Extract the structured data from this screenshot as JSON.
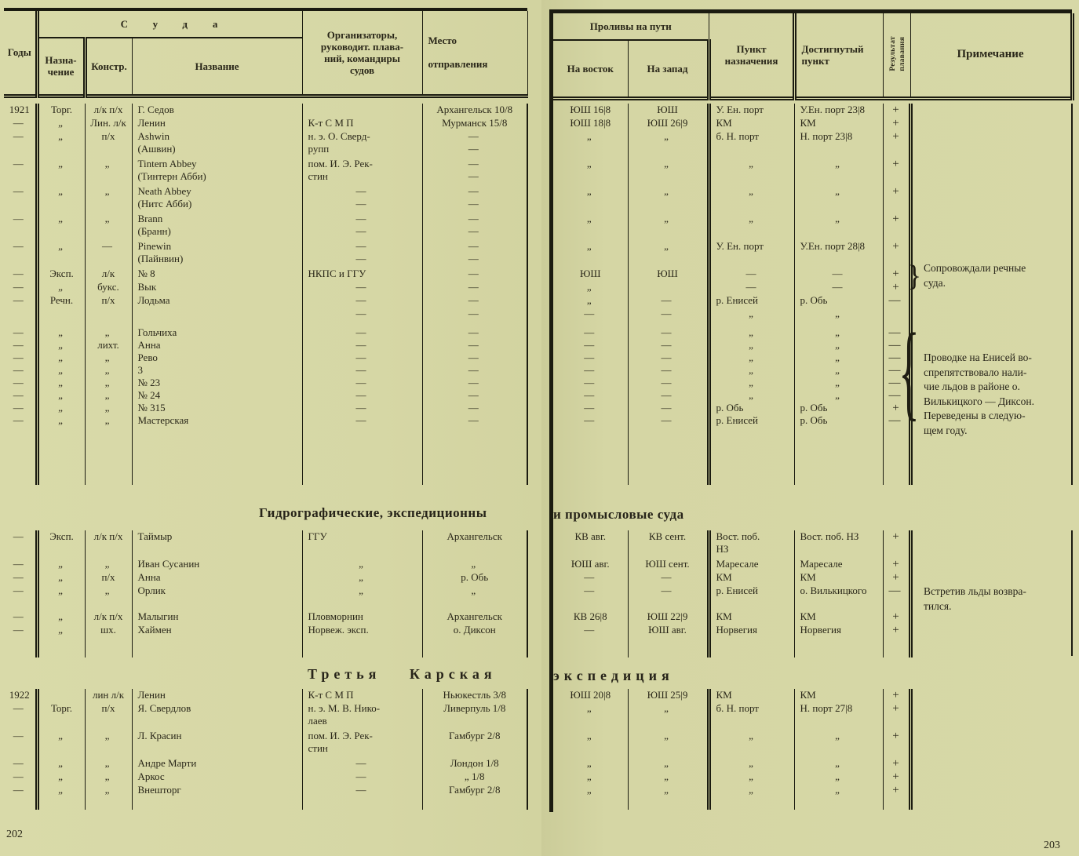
{
  "titles": {
    "section2_left": "Гидрографические, экспедиционны",
    "section2_right": "и промысловые суда",
    "section3_left": "Третья Карская",
    "section3_right": "экспедиция"
  },
  "page_left": {
    "page_number": "202",
    "header": {
      "years": "Годы",
      "suda": "Суда",
      "naznachenie": [
        "Назна-",
        "чение"
      ],
      "konstr": "Констр.",
      "nazvanie": "Название",
      "organizers": [
        "Организаторы,",
        "руководит. плава-",
        "ний, командиры",
        "судов"
      ],
      "mesto": [
        "Место",
        "",
        "отправления"
      ]
    },
    "section1_rows": [
      [
        [
          "1921"
        ],
        [
          "Торг."
        ],
        [
          "л/к п/х"
        ],
        [
          "Г. Седов"
        ],
        [],
        [
          "Архангельск 10/8"
        ]
      ],
      [
        [
          "—"
        ],
        [
          "„"
        ],
        [
          "Лин. л/к"
        ],
        [
          "Ленин"
        ],
        [
          "К-т С М П"
        ],
        [
          "Мурманск 15/8"
        ]
      ],
      [
        [
          "—"
        ],
        [
          "„"
        ],
        [
          "п/х"
        ],
        [
          "Ashwin",
          "(Ашвин)"
        ],
        [
          "н. э. О. Сверд-",
          "рупп"
        ],
        [
          "—",
          "—"
        ]
      ],
      [
        [
          "—"
        ],
        [
          "„"
        ],
        [
          "„"
        ],
        [
          "Tintern Abbey",
          "(Тинтерн Абби)"
        ],
        [
          "пом. И. Э. Рек-",
          "стин"
        ],
        [
          "—",
          "—"
        ]
      ],
      [
        [
          "—"
        ],
        [
          "„"
        ],
        [
          "„"
        ],
        [
          "Neath Abbey",
          "(Нитс Абби)"
        ],
        [
          "—",
          "—"
        ],
        [
          "—",
          "—"
        ]
      ],
      [
        [
          "—"
        ],
        [
          "„"
        ],
        [
          "„"
        ],
        [
          "Brann",
          "(Бранн)"
        ],
        [
          "—",
          "—"
        ],
        [
          "—",
          "—"
        ]
      ],
      [
        [
          "—"
        ],
        [
          "„"
        ],
        [
          "—"
        ],
        [
          "Pinewin",
          "(Пайнвин)"
        ],
        [
          "—",
          "—"
        ],
        [
          "—",
          "—"
        ]
      ],
      [
        [
          "—"
        ],
        [
          "Эксп."
        ],
        [
          "л/к"
        ],
        [
          "№ 8"
        ],
        [
          "НКПС и ГГУ"
        ],
        [
          "—"
        ]
      ],
      [
        [
          "—"
        ],
        [
          "„"
        ],
        [
          "букс."
        ],
        [
          "Вык"
        ],
        [
          "—"
        ],
        [
          "—"
        ]
      ],
      [
        [
          "—"
        ],
        [
          "Речн."
        ],
        [
          "п/х"
        ],
        [
          "Лодьма"
        ],
        [
          "—"
        ],
        [
          "—"
        ]
      ],
      [
        [],
        [],
        [],
        [],
        [
          "—"
        ],
        [
          "—"
        ]
      ],
      [
        [
          "—"
        ],
        [
          "„"
        ],
        [
          "„"
        ],
        [
          "Гольчиха"
        ],
        [
          "—"
        ],
        [
          "—"
        ]
      ],
      [
        [
          "—"
        ],
        [
          "„"
        ],
        [
          "лихт."
        ],
        [
          "Анна"
        ],
        [
          "—"
        ],
        [
          "—"
        ]
      ],
      [
        [
          "—"
        ],
        [
          "„"
        ],
        [
          "„"
        ],
        [
          "Рево"
        ],
        [
          "—"
        ],
        [
          "—"
        ]
      ],
      [
        [
          "—"
        ],
        [
          "„"
        ],
        [
          "„"
        ],
        [
          "3"
        ],
        [
          "—"
        ],
        [
          "—"
        ]
      ],
      [
        [
          "—"
        ],
        [
          "„"
        ],
        [
          "„"
        ],
        [
          "№ 23"
        ],
        [
          "—"
        ],
        [
          "—"
        ]
      ],
      [
        [
          "—"
        ],
        [
          "„"
        ],
        [
          "„"
        ],
        [
          "№ 24"
        ],
        [
          "—"
        ],
        [
          "—"
        ]
      ],
      [
        [
          "—"
        ],
        [
          "„"
        ],
        [
          "„"
        ],
        [
          "№ 315"
        ],
        [
          "—"
        ],
        [
          "—"
        ]
      ],
      [
        [
          "—"
        ],
        [
          "„"
        ],
        [
          "„"
        ],
        [
          "Мастерская"
        ],
        [
          "—"
        ],
        [
          "—"
        ]
      ]
    ],
    "section2_rows": [
      [
        [
          "—"
        ],
        [
          "Эксп."
        ],
        [
          "л/к п/х"
        ],
        [
          "Таймыр"
        ],
        [
          "ГГУ"
        ],
        [
          "Архангельск"
        ]
      ],
      [
        [
          "—"
        ],
        [
          "„"
        ],
        [
          "„"
        ],
        [
          "Иван Сусанин"
        ],
        [
          "„"
        ],
        [
          "„"
        ]
      ],
      [
        [
          "—"
        ],
        [
          "„"
        ],
        [
          "п/х"
        ],
        [
          "Анна"
        ],
        [
          "„"
        ],
        [
          "р. Обь"
        ]
      ],
      [
        [
          "—"
        ],
        [
          "„"
        ],
        [
          "„"
        ],
        [
          "Орлик"
        ],
        [
          "„"
        ],
        [
          "„"
        ]
      ],
      [
        [],
        [],
        [],
        [],
        [],
        []
      ],
      [
        [
          "—"
        ],
        [
          "„"
        ],
        [
          "л/к п/х"
        ],
        [
          "Малыгин"
        ],
        [
          "Пловморнин"
        ],
        [
          "Архангельск"
        ]
      ],
      [
        [
          "—"
        ],
        [
          "„"
        ],
        [
          "шх."
        ],
        [
          "Хаймен"
        ],
        [
          "Норвеж. эксп."
        ],
        [
          "о. Диксон"
        ]
      ]
    ],
    "section3_rows": [
      [
        [
          "1922"
        ],
        [],
        [
          "лин л/к"
        ],
        [
          "Ленин"
        ],
        [
          "К-т С М П"
        ],
        [
          "Ньюкестль 3/8"
        ]
      ],
      [
        [
          "—"
        ],
        [
          "Торг."
        ],
        [
          "п/х"
        ],
        [
          "Я. Свердлов"
        ],
        [
          "н. э. М. В. Нико-",
          "лаев"
        ],
        [
          "Ливерпуль 1/8"
        ]
      ],
      [
        [
          "—"
        ],
        [
          "„"
        ],
        [
          "„"
        ],
        [
          "Л. Красин"
        ],
        [
          "пом. И. Э. Рек-",
          "стин"
        ],
        [
          "Гамбург 2/8"
        ]
      ],
      [
        [
          "—"
        ],
        [
          "„"
        ],
        [
          "„"
        ],
        [
          "Андре Марти"
        ],
        [
          "—"
        ],
        [
          "Лондон 1/8"
        ]
      ],
      [
        [
          "—"
        ],
        [
          "„"
        ],
        [
          "„"
        ],
        [
          "Аркос"
        ],
        [
          "—"
        ],
        [
          "„ 1/8"
        ]
      ],
      [
        [
          "—"
        ],
        [
          "„"
        ],
        [
          "„"
        ],
        [
          "Внешторг"
        ],
        [
          "—"
        ],
        [
          "Гамбург 2/8"
        ]
      ]
    ]
  },
  "page_right": {
    "page_number": "203",
    "header": {
      "prolivy": "Проливы на пути",
      "na_vostok": "На восток",
      "na_zapad": "На запад",
      "punkt": [
        "Пункт",
        "назначения"
      ],
      "dostignutyj": [
        "Достигнутый",
        "пункт"
      ],
      "rezultat": [
        "Результат",
        "плавания"
      ],
      "primechanie": "Примечание"
    },
    "section1_rows": [
      [
        [
          "ЮШ 16|8"
        ],
        [
          "ЮШ"
        ],
        [
          "У. Ен. порт"
        ],
        [
          "У.Ен. порт 23|8"
        ],
        [
          "+"
        ]
      ],
      [
        [
          "ЮШ 18|8"
        ],
        [
          "ЮШ 26|9"
        ],
        [
          "КМ"
        ],
        [
          "КМ"
        ],
        [
          "+"
        ]
      ],
      [
        [
          "„"
        ],
        [
          "„"
        ],
        [
          "б. Н. порт"
        ],
        [
          "Н. порт 23|8"
        ],
        [
          "+"
        ]
      ],
      [
        [
          "„"
        ],
        [
          "„"
        ],
        [
          "„"
        ],
        [
          "„"
        ],
        [
          "+"
        ]
      ],
      [
        [
          "„"
        ],
        [
          "„"
        ],
        [
          "„"
        ],
        [
          "„"
        ],
        [
          "+"
        ]
      ],
      [
        [
          "„"
        ],
        [
          "„"
        ],
        [
          "„"
        ],
        [
          "„"
        ],
        [
          "+"
        ]
      ],
      [
        [
          "„"
        ],
        [
          "„"
        ],
        [
          "У. Ен. порт"
        ],
        [
          "У.Ен. порт 28|8"
        ],
        [
          "+"
        ]
      ],
      [
        [
          "ЮШ"
        ],
        [
          "ЮШ"
        ],
        [
          "—"
        ],
        [
          "—"
        ],
        [
          "+"
        ]
      ],
      [
        [
          "„"
        ],
        [],
        [
          "—"
        ],
        [
          "—"
        ],
        [
          "+"
        ]
      ],
      [
        [
          "„"
        ],
        [
          "—"
        ],
        [
          "р. Енисей"
        ],
        [
          "р. Обь"
        ],
        [
          "—"
        ]
      ],
      [
        [
          "—"
        ],
        [
          "—"
        ],
        [
          "„"
        ],
        [
          "„"
        ],
        []
      ],
      [
        [
          "—"
        ],
        [
          "—"
        ],
        [
          "„"
        ],
        [
          "„"
        ],
        [
          "—"
        ]
      ],
      [
        [
          "—"
        ],
        [
          "—"
        ],
        [
          "„"
        ],
        [
          "„"
        ],
        [
          "—"
        ]
      ],
      [
        [
          "—"
        ],
        [
          "—"
        ],
        [
          "„"
        ],
        [
          "„"
        ],
        [
          "—"
        ]
      ],
      [
        [
          "—"
        ],
        [
          "—"
        ],
        [
          "„"
        ],
        [
          "„"
        ],
        [
          "—"
        ]
      ],
      [
        [
          "—"
        ],
        [
          "—"
        ],
        [
          "„"
        ],
        [
          "„"
        ],
        [
          "—"
        ]
      ],
      [
        [
          "—"
        ],
        [
          "—"
        ],
        [
          "„"
        ],
        [
          "„"
        ],
        [
          "—"
        ]
      ],
      [
        [
          "—"
        ],
        [
          "—"
        ],
        [
          "р. Обь"
        ],
        [
          "р. Обь"
        ],
        [
          "+"
        ]
      ],
      [
        [
          "—"
        ],
        [
          "—"
        ],
        [
          "р. Енисей"
        ],
        [
          "р. Обь"
        ],
        [
          "—"
        ]
      ]
    ],
    "section2_rows": [
      [
        [
          "КВ авг."
        ],
        [
          "КВ сент."
        ],
        [
          "Вост. поб.",
          "НЗ"
        ],
        [
          "Вост. поб. НЗ"
        ],
        [
          "+"
        ]
      ],
      [
        [
          "ЮШ авг."
        ],
        [
          "ЮШ сент."
        ],
        [
          "Маресале"
        ],
        [
          "Маресале"
        ],
        [
          "+"
        ]
      ],
      [
        [
          "—"
        ],
        [
          "—"
        ],
        [
          "КМ"
        ],
        [
          "КМ"
        ],
        [
          "+"
        ]
      ],
      [
        [
          "—"
        ],
        [
          "—"
        ],
        [
          "р. Енисей"
        ],
        [
          "о. Вилькицкого"
        ],
        [
          "—"
        ]
      ],
      [
        [],
        [],
        [],
        [],
        []
      ],
      [
        [
          "КВ 26|8"
        ],
        [
          "ЮШ 22|9"
        ],
        [
          "КМ"
        ],
        [
          "КМ"
        ],
        [
          "+"
        ]
      ],
      [
        [
          "—"
        ],
        [
          "ЮШ авг."
        ],
        [
          "Норвегия"
        ],
        [
          "Норвегия"
        ],
        [
          "+"
        ]
      ]
    ],
    "section3_rows": [
      [
        [
          "ЮШ 20|8"
        ],
        [
          "ЮШ 25|9"
        ],
        [
          "КМ"
        ],
        [
          "КМ"
        ],
        [
          "+"
        ]
      ],
      [
        [
          "„"
        ],
        [
          "„"
        ],
        [
          "б. Н. порт"
        ],
        [
          "Н. порт 27|8"
        ],
        [
          "+"
        ]
      ],
      [
        [
          "„"
        ],
        [
          "„"
        ],
        [
          "„"
        ],
        [
          "„"
        ],
        [
          "+"
        ]
      ],
      [
        [
          "„"
        ],
        [
          "„"
        ],
        [
          "„"
        ],
        [
          "„"
        ],
        [
          "+"
        ]
      ],
      [
        [
          "„"
        ],
        [
          "„"
        ],
        [
          "„"
        ],
        [
          "„"
        ],
        [
          "+"
        ]
      ],
      [
        [
          "„"
        ],
        [
          "„"
        ],
        [
          "„"
        ],
        [
          "„"
        ],
        [
          "+"
        ]
      ]
    ],
    "notes": {
      "note1": [
        "Сопровождали речные",
        "суда."
      ],
      "note2": [
        "Проводке на Енисей во-",
        "спрепятствовало нали-",
        "чие льдов в районе о.",
        "Вилькицкого — Диксон.",
        "Переведены в следую-",
        "щем году."
      ],
      "note3": [
        "Встретив льды возвра-",
        "тился."
      ],
      "brace1_glyph": "}",
      "brace2_glyph": "{"
    }
  }
}
